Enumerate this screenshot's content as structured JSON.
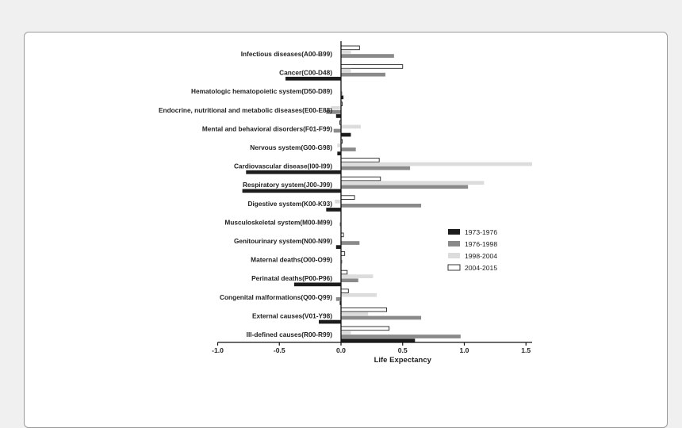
{
  "chart_data": {
    "type": "bar",
    "orientation": "horizontal",
    "categories": [
      "Infectious diseases(A00-B99)",
      "Cancer(C00-D48)",
      "Hematologic hematopoietic system(D50-D89)",
      "Endocrine, nutritional and metabolic diseases(E00-E88)",
      "Mental and behavioral disorders(F01-F99)",
      "Nervous system(G00-G98)",
      "Cardiovascular disease(I00-I99)",
      "Respiratory system(J00-J99)",
      "Digestive system(K00-K93)",
      "Musculoskeletal system(M00-M99)",
      "Genitourinary system(N00-N99)",
      "Maternal deaths(O00-O99)",
      "Perinatal deaths(P00-P96)",
      "Congenital malformations(Q00-Q99)",
      "External causes(V01-Y98)",
      "Ill-defined causes(R00-R99)"
    ],
    "series": [
      {
        "name": "1973-1976",
        "color": "#1c1c1c",
        "values": [
          0.0,
          -0.45,
          0.02,
          -0.04,
          0.08,
          -0.03,
          -0.77,
          -0.8,
          -0.12,
          0.0,
          -0.04,
          0.0,
          -0.38,
          -0.01,
          -0.18,
          0.6
        ]
      },
      {
        "name": "1976-1998",
        "color": "#8a8a8a",
        "values": [
          0.43,
          0.36,
          0.01,
          -0.12,
          -0.06,
          0.12,
          0.56,
          1.03,
          0.65,
          -0.01,
          0.15,
          0.01,
          0.14,
          -0.04,
          0.65,
          0.97
        ]
      },
      {
        "name": "1998-2004",
        "color": "#dcdcdc",
        "values": [
          0.08,
          0.08,
          0.0,
          -0.08,
          0.16,
          -0.03,
          1.73,
          1.16,
          -0.05,
          0.0,
          0.0,
          0.0,
          0.26,
          0.29,
          0.22,
          0.08
        ]
      },
      {
        "name": "2004-2015",
        "color": "#ffffff",
        "values": [
          0.15,
          0.5,
          0.0,
          0.01,
          -0.01,
          0.01,
          0.31,
          0.32,
          0.11,
          0.0,
          0.02,
          0.03,
          0.05,
          0.06,
          0.37,
          0.39
        ]
      }
    ],
    "xlabel": "Life Expectancy",
    "ylabel": "",
    "xlim": [
      -1.0,
      2.0
    ],
    "xticks": [
      "-1.0",
      "-0.5",
      "0.0",
      "0.5",
      "1.0",
      "1.5",
      "2.0"
    ],
    "legend_position": "right",
    "grid": false
  }
}
